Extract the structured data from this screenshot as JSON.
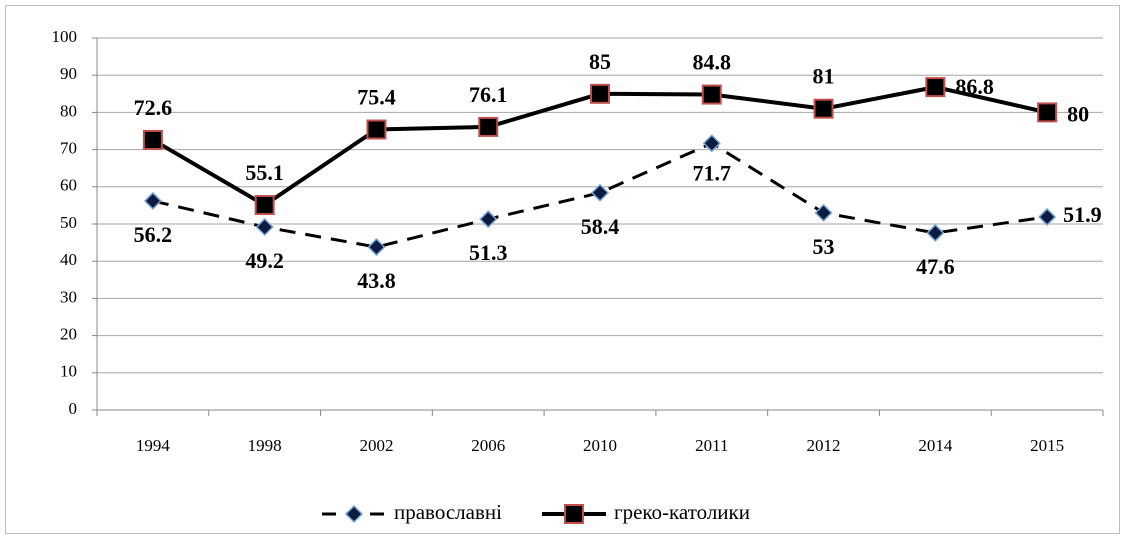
{
  "chart_data": {
    "type": "line",
    "categories": [
      "1994",
      "1998",
      "2002",
      "2006",
      "2010",
      "2011",
      "2012",
      "2014",
      "2015"
    ],
    "series": [
      {
        "name": "православні",
        "color": "#000000",
        "marker": "diamond",
        "dashed": true,
        "values": [
          56.2,
          49.2,
          43.8,
          51.3,
          58.4,
          71.7,
          53,
          47.6,
          51.9
        ]
      },
      {
        "name": "греко-католики",
        "color": "#000000",
        "marker": "square",
        "dashed": false,
        "values": [
          72.6,
          55.1,
          75.4,
          76.1,
          85,
          84.8,
          81,
          86.8,
          80
        ]
      }
    ],
    "ylim": [
      0,
      100
    ],
    "yticks": [
      0,
      10,
      20,
      30,
      40,
      50,
      60,
      70,
      80,
      90,
      100
    ],
    "grid": true,
    "legend": "bottom"
  }
}
